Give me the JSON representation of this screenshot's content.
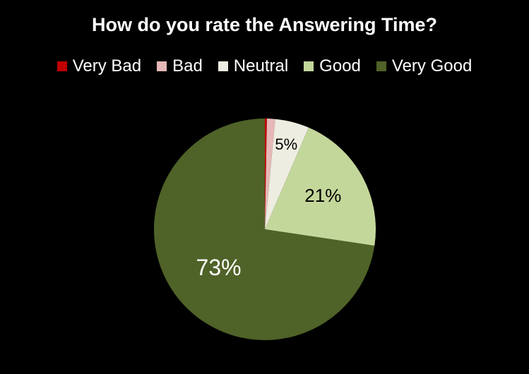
{
  "chart_data": {
    "type": "pie",
    "title": "How do you rate the Answering Time?",
    "categories": [
      "Very Bad",
      "Bad",
      "Neutral",
      "Good",
      "Very Good"
    ],
    "values": [
      0.3,
      1.2,
      5,
      21,
      73
    ],
    "data_labels": [
      "",
      "",
      "5%",
      "21%",
      "73%"
    ],
    "colors": [
      "#C00000",
      "#E6B8B7",
      "#EEEDE1",
      "#C4D79B",
      "#4F6228"
    ],
    "label_colors": [
      "#000000",
      "#000000",
      "#000000",
      "#000000",
      "#ffffff"
    ],
    "start_angle": 0,
    "direction": "clockwise",
    "legend": "top",
    "background": "#000000"
  }
}
